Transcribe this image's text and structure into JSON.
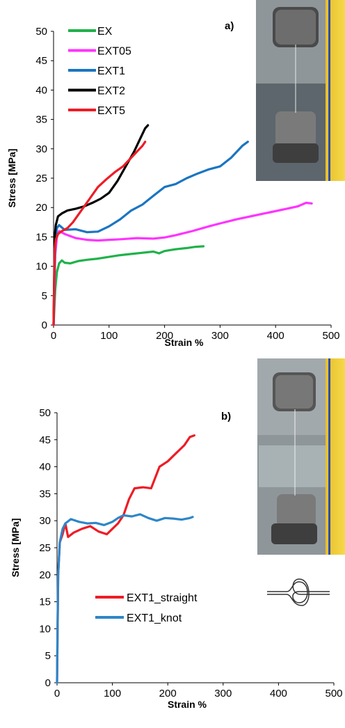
{
  "chart_data": [
    {
      "type": "line",
      "panel_label": "a)",
      "xlabel": "Strain  %",
      "ylabel": "Stress [MPa]",
      "xlim": [
        0,
        500
      ],
      "ylim": [
        0,
        50
      ],
      "xticks": [
        "0",
        "100",
        "200",
        "300",
        "400",
        "500"
      ],
      "yticks": [
        "0",
        "5",
        "10",
        "15",
        "20",
        "25",
        "30",
        "35",
        "40",
        "45",
        "50"
      ],
      "legend_position": "top-left",
      "series": [
        {
          "name": "EX",
          "color": "#1fb24a",
          "x": [
            0,
            3,
            6,
            10,
            15,
            20,
            30,
            45,
            60,
            80,
            100,
            120,
            140,
            160,
            180,
            190,
            200,
            220,
            240,
            255,
            270
          ],
          "y": [
            0,
            6,
            9,
            10.5,
            11,
            10.6,
            10.5,
            10.9,
            11.1,
            11.3,
            11.6,
            11.9,
            12.1,
            12.3,
            12.5,
            12.2,
            12.6,
            12.9,
            13.1,
            13.3,
            13.4
          ]
        },
        {
          "name": "EXT05",
          "color": "#ff33ff",
          "x": [
            0,
            3,
            6,
            10,
            20,
            40,
            60,
            80,
            100,
            120,
            150,
            180,
            200,
            220,
            250,
            280,
            300,
            330,
            360,
            390,
            420,
            440,
            455,
            465
          ],
          "y": [
            0,
            12,
            15,
            16,
            15.5,
            14.8,
            14.5,
            14.4,
            14.5,
            14.6,
            14.8,
            14.7,
            14.9,
            15.3,
            16,
            16.8,
            17.3,
            18,
            18.6,
            19.2,
            19.8,
            20.2,
            20.8,
            20.7
          ]
        },
        {
          "name": "EXT1",
          "color": "#1a75c2",
          "x": [
            0,
            3,
            6,
            10,
            20,
            40,
            60,
            80,
            100,
            120,
            140,
            160,
            180,
            200,
            220,
            240,
            260,
            280,
            300,
            320,
            340,
            350
          ],
          "y": [
            0,
            14,
            16.5,
            17,
            16.2,
            16.3,
            15.8,
            15.9,
            16.8,
            18,
            19.5,
            20.5,
            22,
            23.5,
            24,
            25,
            25.8,
            26.5,
            27,
            28.5,
            30.5,
            31.2
          ]
        },
        {
          "name": "EXT2",
          "color": "#000000",
          "x": [
            0,
            2,
            4,
            8,
            15,
            25,
            40,
            55,
            70,
            85,
            100,
            115,
            130,
            145,
            155,
            165,
            170
          ],
          "y": [
            0,
            15,
            17,
            18.5,
            19,
            19.5,
            19.8,
            20.2,
            20.8,
            21.5,
            22.5,
            24.5,
            27,
            29.5,
            31.5,
            33.5,
            34
          ]
        },
        {
          "name": "EXT5",
          "color": "#ee1c25",
          "x": [
            0,
            2,
            4,
            8,
            15,
            25,
            35,
            50,
            65,
            80,
            95,
            110,
            125,
            140,
            150,
            160,
            165
          ],
          "y": [
            0,
            13,
            14.5,
            15.5,
            16,
            16.5,
            17.5,
            19.5,
            21.5,
            23.5,
            24.8,
            26,
            27,
            28.5,
            29.5,
            30.5,
            31.2
          ]
        }
      ]
    },
    {
      "type": "line",
      "panel_label": "b)",
      "xlabel": "Strain %",
      "ylabel": "Stress [MPa]",
      "xlim": [
        0,
        500
      ],
      "ylim": [
        0,
        50
      ],
      "xticks": [
        "0",
        "100",
        "200",
        "300",
        "400",
        "500"
      ],
      "yticks": [
        "0",
        "5",
        "10",
        "15",
        "20",
        "25",
        "30",
        "35",
        "40",
        "45",
        "50"
      ],
      "legend_position": "center-left",
      "series": [
        {
          "name": "EXT1_straight",
          "color": "#ee1c25",
          "x": [
            0,
            2,
            5,
            10,
            15,
            20,
            30,
            45,
            60,
            75,
            90,
            100,
            110,
            120,
            130,
            140,
            155,
            170,
            185,
            200,
            215,
            230,
            240,
            248
          ],
          "y": [
            0,
            20,
            26,
            27.5,
            29.5,
            27,
            27.8,
            28.5,
            29,
            28,
            27.5,
            28.5,
            29.5,
            31,
            34,
            36,
            36.2,
            36,
            40,
            41,
            42.5,
            44,
            45.5,
            45.8
          ]
        },
        {
          "name": "EXT1_knot",
          "color": "#2e86c8",
          "x": [
            0,
            2,
            5,
            10,
            15,
            25,
            40,
            55,
            70,
            85,
            100,
            110,
            120,
            135,
            150,
            165,
            180,
            195,
            210,
            225,
            240,
            245
          ],
          "y": [
            0,
            20,
            26,
            28.5,
            29.5,
            30.3,
            29.8,
            29.5,
            29.6,
            29.2,
            29.8,
            30.5,
            31,
            30.8,
            31.2,
            30.5,
            30,
            30.5,
            30.4,
            30.2,
            30.5,
            30.7
          ]
        }
      ]
    }
  ]
}
